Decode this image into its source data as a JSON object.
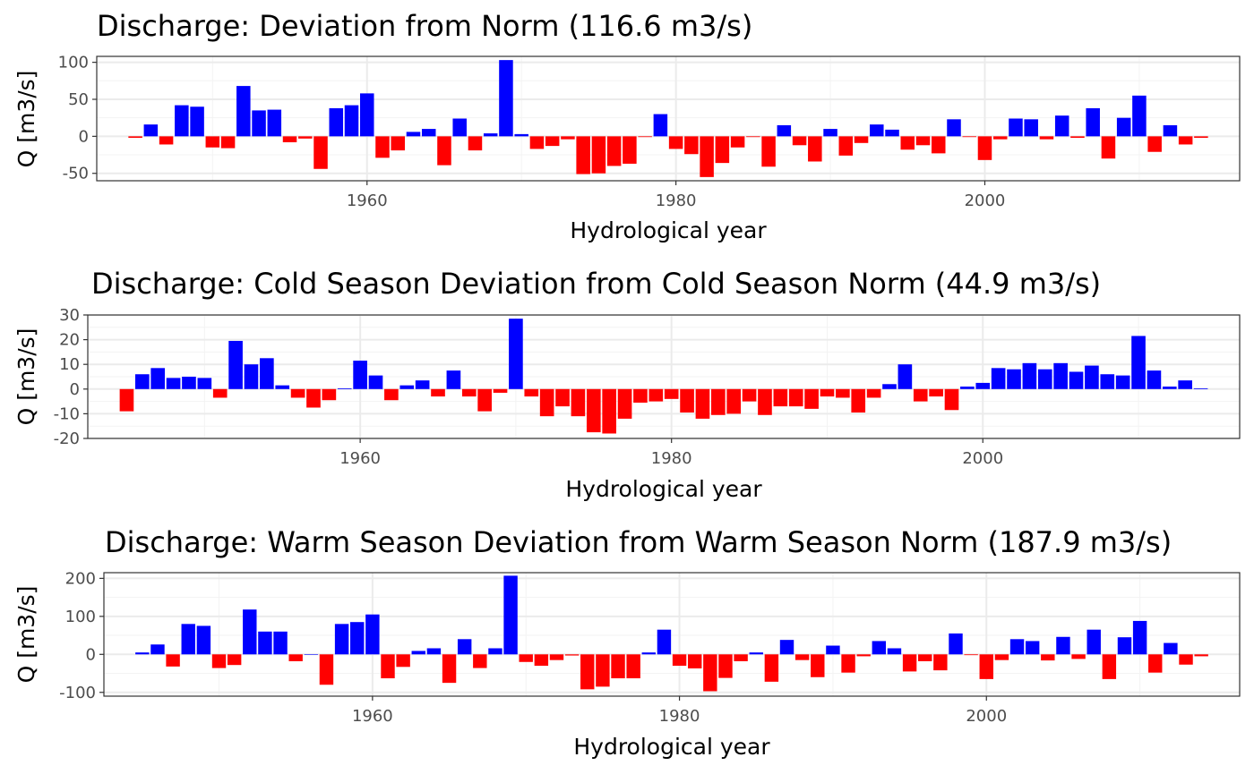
{
  "colors": {
    "positive": "#0000FF",
    "negative": "#FF0000",
    "grid_major": "#EBEBEB",
    "grid_minor": "#F3F3F3",
    "panel_border": "#333333"
  },
  "chart_data": [
    {
      "type": "bar",
      "title": "Discharge: Deviation from Norm (116.6 m3/s)",
      "xlabel": "Hydrological year",
      "ylabel": "Q [m3/s]",
      "xlim": [
        1942.5,
        2016.5
      ],
      "ylim": [
        -60,
        108
      ],
      "xticks": [
        1960,
        1980,
        2000
      ],
      "yticks": [
        -50,
        0,
        50,
        100
      ],
      "grid": true,
      "x": [
        1945,
        1946,
        1947,
        1948,
        1949,
        1950,
        1951,
        1952,
        1953,
        1954,
        1955,
        1956,
        1957,
        1958,
        1959,
        1960,
        1961,
        1962,
        1963,
        1964,
        1965,
        1966,
        1967,
        1968,
        1969,
        1970,
        1971,
        1972,
        1973,
        1974,
        1975,
        1976,
        1977,
        1978,
        1979,
        1980,
        1981,
        1982,
        1983,
        1984,
        1985,
        1986,
        1987,
        1988,
        1989,
        1990,
        1991,
        1992,
        1993,
        1994,
        1995,
        1996,
        1997,
        1998,
        1999,
        2000,
        2001,
        2002,
        2003,
        2004,
        2005,
        2006,
        2007,
        2008,
        2009,
        2010,
        2011,
        2012,
        2013,
        2014
      ],
      "values": [
        -2,
        16,
        -11,
        42,
        40,
        -15,
        -16,
        68,
        35,
        36,
        -8,
        -3,
        -44,
        38,
        42,
        58,
        -29,
        -19,
        6,
        10,
        -39,
        24,
        -19,
        4,
        103,
        3,
        -17,
        -13,
        -4,
        -51,
        -50,
        -40,
        -37,
        -1,
        30,
        -17,
        -24,
        -55,
        -36,
        -15,
        -1,
        -41,
        15,
        -12,
        -34,
        10,
        -26,
        -9,
        16,
        9,
        -18,
        -12,
        -23,
        23,
        -1,
        -32,
        -4,
        24,
        23,
        -4,
        28,
        -2,
        38,
        -30,
        25,
        55,
        -21,
        15,
        -11,
        -2
      ]
    },
    {
      "type": "bar",
      "title": "Discharge: Cold Season Deviation from Cold Season Norm (44.9 m3/s)",
      "xlabel": "Hydrological year",
      "ylabel": "Q [m3/s]",
      "xlim": [
        1942.5,
        2016.5
      ],
      "ylim": [
        -20,
        30
      ],
      "xticks": [
        1960,
        1980,
        2000
      ],
      "yticks": [
        -20,
        -10,
        0,
        10,
        20,
        30
      ],
      "grid": true,
      "x": [
        1945,
        1946,
        1947,
        1948,
        1949,
        1950,
        1951,
        1952,
        1953,
        1954,
        1955,
        1956,
        1957,
        1958,
        1959,
        1960,
        1961,
        1962,
        1963,
        1964,
        1965,
        1966,
        1967,
        1968,
        1969,
        1970,
        1971,
        1972,
        1973,
        1974,
        1975,
        1976,
        1977,
        1978,
        1979,
        1980,
        1981,
        1982,
        1983,
        1984,
        1985,
        1986,
        1987,
        1988,
        1989,
        1990,
        1991,
        1992,
        1993,
        1994,
        1995,
        1996,
        1997,
        1998,
        1999,
        2000,
        2001,
        2002,
        2003,
        2004,
        2005,
        2006,
        2007,
        2008,
        2009,
        2010,
        2011,
        2012,
        2013,
        2014
      ],
      "values": [
        -9,
        6,
        8.5,
        4.5,
        5,
        4.5,
        -3.5,
        19.5,
        10,
        12.5,
        1.5,
        -3.5,
        -7.5,
        -4.5,
        0.3,
        11.5,
        5.5,
        -4.5,
        1.5,
        3.5,
        -3,
        7.5,
        -3,
        -9,
        -1.5,
        28.5,
        -3,
        -11,
        -7,
        -11,
        -17.5,
        -18,
        -12,
        -5.5,
        -5,
        -4,
        -9.5,
        -12,
        -10.5,
        -10,
        -5,
        -10.5,
        -7,
        -7,
        -8,
        -3,
        -3.5,
        -9.5,
        -3.5,
        2,
        10,
        -5,
        -3,
        -8.5,
        1,
        2.5,
        8.5,
        8,
        10.5,
        8,
        10.5,
        7,
        9.5,
        6,
        5.5,
        21.5,
        7.5,
        1,
        3.5,
        0.3
      ]
    },
    {
      "type": "bar",
      "title": "Discharge: Warm Season Deviation from Warm Season Norm (187.9 m3/s)",
      "xlabel": "Hydrological year",
      "ylabel": "Q [m3/s]",
      "xlim": [
        1942.5,
        2016.5
      ],
      "ylim": [
        -110,
        215
      ],
      "xticks": [
        1960,
        1980,
        2000
      ],
      "yticks": [
        -100,
        0,
        100,
        200
      ],
      "grid": true,
      "x": [
        1945,
        1946,
        1947,
        1948,
        1949,
        1950,
        1951,
        1952,
        1953,
        1954,
        1955,
        1956,
        1957,
        1958,
        1959,
        1960,
        1961,
        1962,
        1963,
        1964,
        1965,
        1966,
        1967,
        1968,
        1969,
        1970,
        1971,
        1972,
        1973,
        1974,
        1975,
        1976,
        1977,
        1978,
        1979,
        1980,
        1981,
        1982,
        1983,
        1984,
        1985,
        1986,
        1987,
        1988,
        1989,
        1990,
        1991,
        1992,
        1993,
        1994,
        1995,
        1996,
        1997,
        1998,
        1999,
        2000,
        2001,
        2002,
        2003,
        2004,
        2005,
        2006,
        2007,
        2008,
        2009,
        2010,
        2011,
        2012,
        2013,
        2014
      ],
      "values": [
        5,
        26,
        -32,
        80,
        75,
        -36,
        -28,
        118,
        60,
        60,
        -18,
        0,
        -80,
        80,
        85,
        105,
        -63,
        -33,
        9,
        16,
        -75,
        40,
        -36,
        16,
        207,
        -20,
        -30,
        -15,
        -3,
        -92,
        -85,
        -63,
        -63,
        5,
        65,
        -30,
        -37,
        -97,
        -62,
        -18,
        5,
        -72,
        38,
        -15,
        -60,
        23,
        -48,
        -5,
        35,
        16,
        -45,
        -18,
        -42,
        55,
        -2,
        -65,
        -15,
        40,
        35,
        -16,
        46,
        -12,
        65,
        -65,
        45,
        88,
        -48,
        30,
        -27,
        -5
      ]
    }
  ]
}
